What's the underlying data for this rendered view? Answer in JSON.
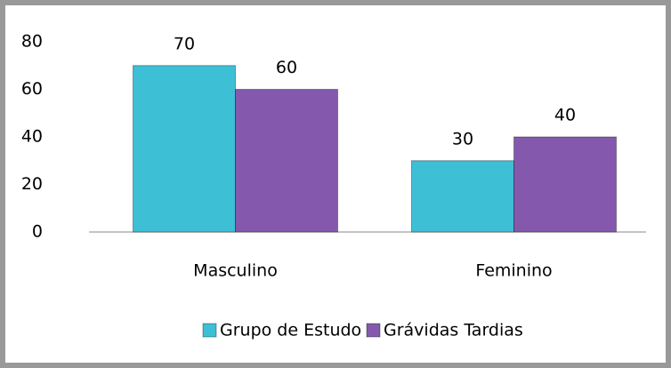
{
  "chart_data": {
    "type": "bar",
    "categories": [
      "Masculino",
      "Feminino"
    ],
    "series": [
      {
        "name": "Grupo de Estudo",
        "color": "#3dbfd6",
        "values": [
          70,
          30
        ]
      },
      {
        "name": "Grávidas Tardias",
        "color": "#8459ad",
        "values": [
          60,
          40
        ]
      }
    ],
    "ylim": [
      0,
      80
    ],
    "yticks": [
      0,
      20,
      40,
      60,
      80
    ],
    "grid": false,
    "legend": "bottom"
  }
}
